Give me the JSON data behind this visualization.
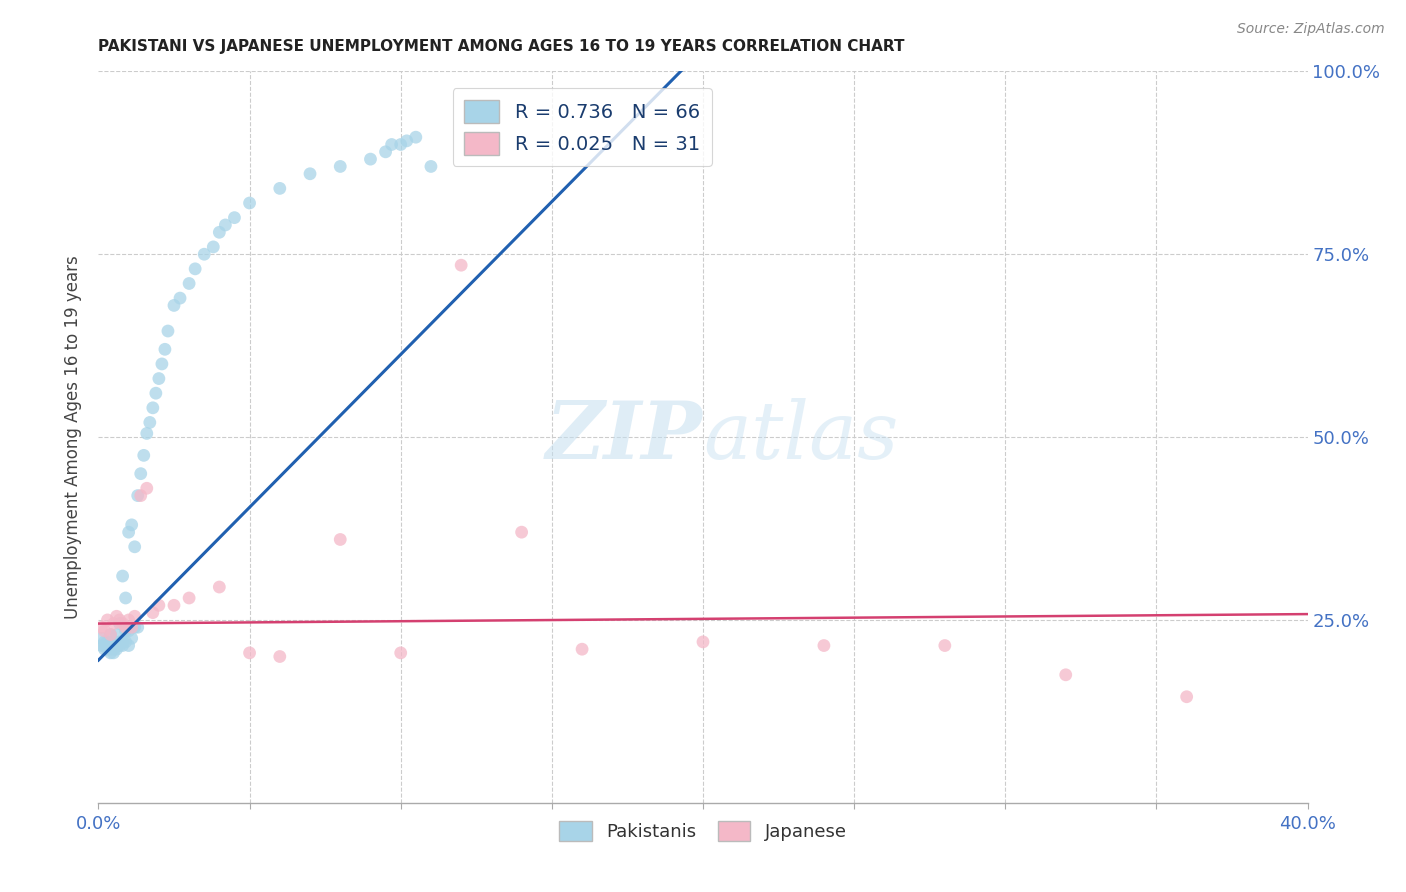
{
  "title": "PAKISTANI VS JAPANESE UNEMPLOYMENT AMONG AGES 16 TO 19 YEARS CORRELATION CHART",
  "source": "Source: ZipAtlas.com",
  "ylabel": "Unemployment Among Ages 16 to 19 years",
  "xlim": [
    0.0,
    0.4
  ],
  "ylim": [
    0.0,
    1.0
  ],
  "pakistani_color": "#a8d4e8",
  "japanese_color": "#f4b8c8",
  "pakistani_R": 0.736,
  "pakistani_N": 66,
  "japanese_R": 0.025,
  "japanese_N": 31,
  "trend_pakistani_color": "#2060b0",
  "trend_japanese_color": "#d44070",
  "watermark_zip": "ZIP",
  "watermark_atlas": "atlas",
  "background_color": "#ffffff",
  "grid_color": "#cccccc",
  "pak_trend_x0": 0.0,
  "pak_trend_y0": 0.195,
  "pak_trend_x1": 0.195,
  "pak_trend_y1": 1.01,
  "jap_trend_x0": 0.0,
  "jap_trend_y0": 0.245,
  "jap_trend_x1": 0.4,
  "jap_trend_y1": 0.258,
  "pakistani_x": [
    0.001,
    0.001,
    0.002,
    0.002,
    0.002,
    0.003,
    0.003,
    0.003,
    0.004,
    0.004,
    0.004,
    0.004,
    0.005,
    0.005,
    0.005,
    0.006,
    0.006,
    0.006,
    0.007,
    0.007,
    0.007,
    0.008,
    0.008,
    0.008,
    0.009,
    0.009,
    0.009,
    0.01,
    0.01,
    0.01,
    0.011,
    0.011,
    0.012,
    0.012,
    0.013,
    0.013,
    0.014,
    0.015,
    0.016,
    0.017,
    0.018,
    0.019,
    0.02,
    0.021,
    0.022,
    0.023,
    0.025,
    0.027,
    0.03,
    0.032,
    0.035,
    0.038,
    0.04,
    0.042,
    0.045,
    0.05,
    0.06,
    0.07,
    0.08,
    0.09,
    0.095,
    0.097,
    0.1,
    0.102,
    0.105,
    0.11
  ],
  "pakistani_y": [
    0.215,
    0.225,
    0.21,
    0.215,
    0.22,
    0.21,
    0.215,
    0.22,
    0.205,
    0.21,
    0.215,
    0.23,
    0.205,
    0.21,
    0.215,
    0.21,
    0.215,
    0.23,
    0.215,
    0.22,
    0.245,
    0.215,
    0.22,
    0.31,
    0.22,
    0.235,
    0.28,
    0.215,
    0.235,
    0.37,
    0.225,
    0.38,
    0.24,
    0.35,
    0.24,
    0.42,
    0.45,
    0.475,
    0.505,
    0.52,
    0.54,
    0.56,
    0.58,
    0.6,
    0.62,
    0.645,
    0.68,
    0.69,
    0.71,
    0.73,
    0.75,
    0.76,
    0.78,
    0.79,
    0.8,
    0.82,
    0.84,
    0.86,
    0.87,
    0.88,
    0.89,
    0.9,
    0.9,
    0.905,
    0.91,
    0.87
  ],
  "japanese_x": [
    0.001,
    0.002,
    0.003,
    0.004,
    0.005,
    0.006,
    0.007,
    0.008,
    0.009,
    0.01,
    0.011,
    0.012,
    0.014,
    0.016,
    0.018,
    0.02,
    0.025,
    0.03,
    0.04,
    0.05,
    0.06,
    0.08,
    0.1,
    0.12,
    0.14,
    0.16,
    0.2,
    0.24,
    0.28,
    0.32,
    0.36
  ],
  "japanese_y": [
    0.24,
    0.235,
    0.25,
    0.23,
    0.245,
    0.255,
    0.25,
    0.245,
    0.24,
    0.25,
    0.24,
    0.255,
    0.42,
    0.43,
    0.26,
    0.27,
    0.27,
    0.28,
    0.295,
    0.205,
    0.2,
    0.36,
    0.205,
    0.735,
    0.37,
    0.21,
    0.22,
    0.215,
    0.215,
    0.175,
    0.145
  ]
}
